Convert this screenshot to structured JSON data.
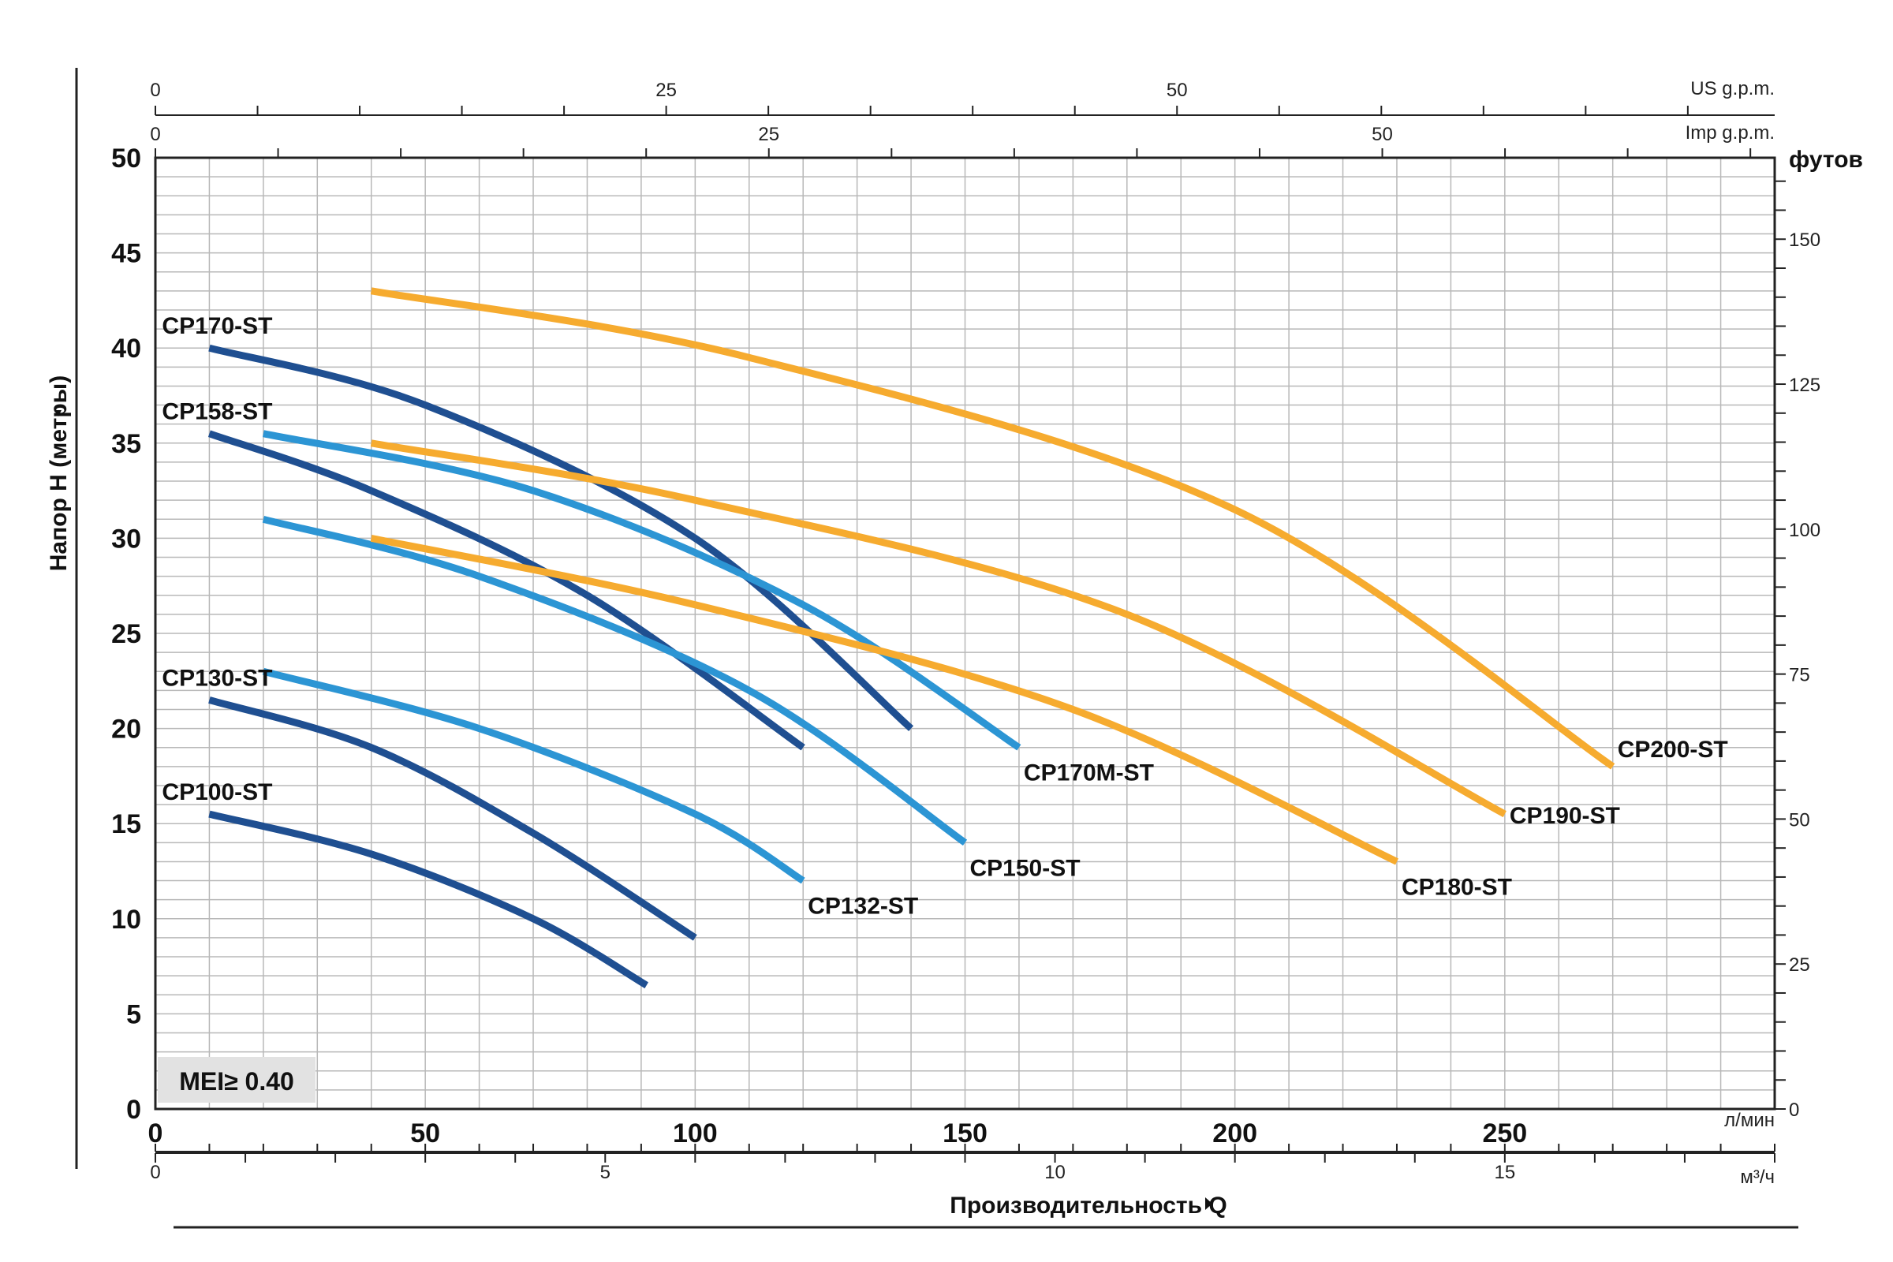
{
  "chart_data": {
    "type": "line",
    "ylabel": "Напор H (метры)",
    "xlabel": "Производительность Q",
    "x_unit": "л/мин",
    "x_range": [
      0,
      300
    ],
    "y_range": [
      0,
      50
    ],
    "x_ticks": [
      0,
      50,
      100,
      150,
      200,
      250
    ],
    "y_ticks": [
      0,
      5,
      10,
      15,
      20,
      25,
      30,
      35,
      40,
      45,
      50
    ],
    "secondary_axes": {
      "feet": {
        "label": "футов",
        "ticks": [
          0,
          25,
          50,
          75,
          100,
          125,
          150
        ],
        "per_unit_of_primary": 3.28084
      },
      "m3h": {
        "label": "м³/ч",
        "ticks": [
          0,
          5,
          10,
          15
        ],
        "per_unit_of_primary": 0.06
      },
      "us_gpm": {
        "label": "US g.p.m.",
        "ticks": [
          0,
          25,
          50
        ],
        "per_unit_of_primary": 0.264172
      },
      "imp_gpm": {
        "label": "Imp g.p.m.",
        "ticks": [
          0,
          25,
          50
        ],
        "per_unit_of_primary": 0.219969
      }
    },
    "grid": true,
    "badge": "MEI≥ 0.40",
    "colors": {
      "dark_blue": "#1f4f91",
      "light_blue": "#2c95d4",
      "orange": "#f6ab2f"
    },
    "series": [
      {
        "name": "CP100-ST",
        "color": "dark_blue",
        "x": [
          10,
          40,
          70,
          91
        ],
        "y": [
          15.5,
          13.4,
          10,
          6.5
        ]
      },
      {
        "name": "CP130-ST",
        "color": "dark_blue",
        "x": [
          10,
          40,
          70,
          100
        ],
        "y": [
          21.5,
          19,
          14.5,
          9
        ]
      },
      {
        "name": "CP132-ST",
        "color": "light_blue",
        "x": [
          20,
          60,
          100,
          120
        ],
        "y": [
          23,
          20,
          15.5,
          12
        ]
      },
      {
        "name": "CP158-ST",
        "color": "dark_blue",
        "x": [
          10,
          40,
          80,
          120
        ],
        "y": [
          35.5,
          32.5,
          27,
          19
        ]
      },
      {
        "name": "CP150-ST",
        "color": "light_blue",
        "x": [
          20,
          60,
          110,
          150
        ],
        "y": [
          31,
          28,
          22,
          14
        ]
      },
      {
        "name": "CP170-ST",
        "color": "dark_blue",
        "x": [
          10,
          50,
          100,
          140
        ],
        "y": [
          40,
          37,
          30,
          20
        ]
      },
      {
        "name": "CP170M-ST",
        "color": "light_blue",
        "x": [
          20,
          70,
          120,
          160
        ],
        "y": [
          35.5,
          32.5,
          26.5,
          19
        ]
      },
      {
        "name": "CP180-ST",
        "color": "orange",
        "x": [
          40,
          100,
          170,
          230
        ],
        "y": [
          30,
          26.5,
          21,
          13
        ]
      },
      {
        "name": "CP190-ST",
        "color": "orange",
        "x": [
          40,
          100,
          180,
          250
        ],
        "y": [
          35,
          32,
          26,
          15.5
        ]
      },
      {
        "name": "CP200-ST",
        "color": "orange",
        "x": [
          40,
          110,
          200,
          270
        ],
        "y": [
          43,
          39.5,
          31.5,
          18
        ]
      }
    ]
  }
}
